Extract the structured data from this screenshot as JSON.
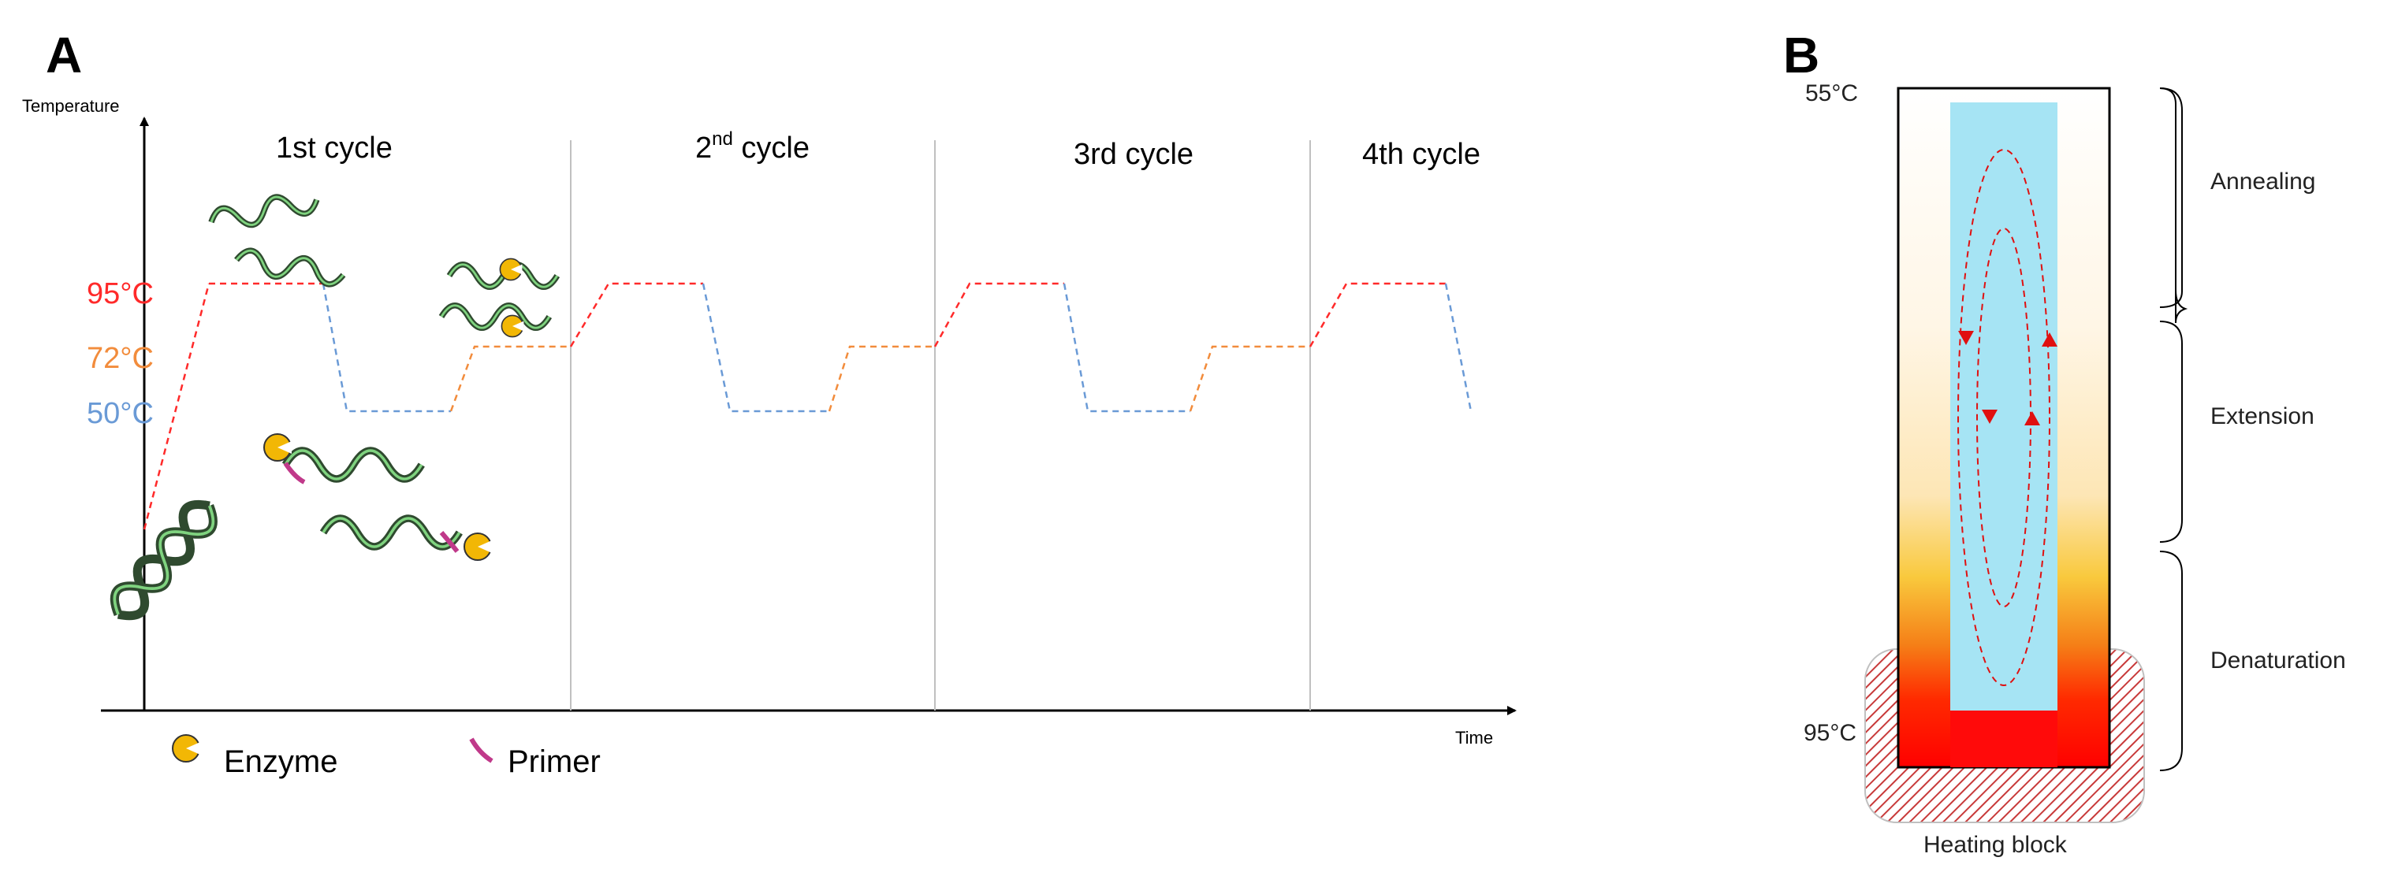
{
  "panel_a": {
    "letter": "A",
    "y_axis_label": "Temperature",
    "x_axis_label": "Time",
    "cycles": [
      {
        "main": "1st cycle",
        "sup": ""
      },
      {
        "main": "2",
        "sup": "nd",
        "rest": " cycle"
      },
      {
        "main": "3rd cycle",
        "sup": ""
      },
      {
        "main": "4th cycle",
        "sup": ""
      }
    ],
    "temperatures": [
      {
        "label": "95°C",
        "value": 95,
        "color": "#ff2a2a"
      },
      {
        "label": "72°C",
        "value": 72,
        "color": "#f28c3c"
      },
      {
        "label": "50°C",
        "value": 50,
        "color": "#6a9ad6"
      }
    ],
    "legend": {
      "enzyme": "Enzyme",
      "primer": "Primer"
    },
    "colors": {
      "dna": "#2f4a2f",
      "dna_highlight": "#7fd37f",
      "enzyme": "#f2b705",
      "primer": "#c0398a"
    }
  },
  "panel_b": {
    "letter": "B",
    "top_temp": "55°C",
    "bottom_temp": "95°C",
    "stages": [
      "Annealing",
      "Extension",
      "Denaturation"
    ],
    "heating_block_label": "Heating block",
    "colors": {
      "liquid": "#a6e4f4",
      "arrows": "#e01010",
      "hot": "#ff0a0a"
    }
  }
}
